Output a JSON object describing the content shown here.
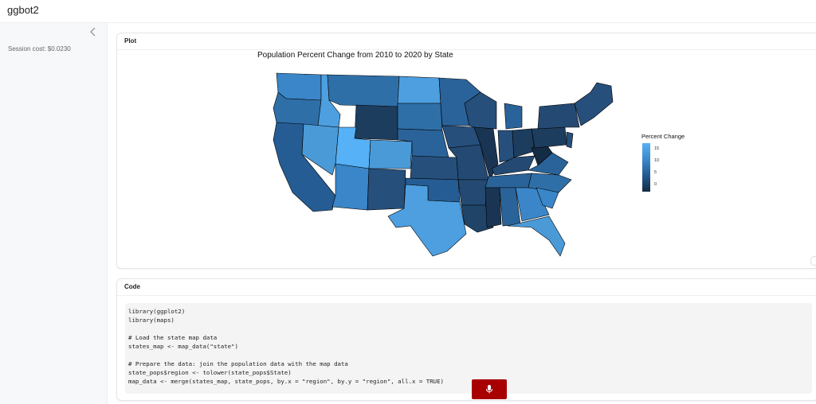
{
  "app": {
    "title": "ggbot2"
  },
  "sidebar": {
    "session_cost": "Session cost: $0.0230"
  },
  "plot_card": {
    "title": "Plot",
    "plot_title": "Population Percent Change from 2010 to 2020 by State",
    "legend": {
      "title": "Percent Change",
      "ticks": [
        "15",
        "10",
        "5",
        "0"
      ]
    }
  },
  "code_card": {
    "title": "Code",
    "lines": [
      "library(ggplot2)",
      "library(maps)",
      "",
      "# Load the state map data",
      "states_map <- map_data(\"state\")",
      "",
      "# Prepare the data: join the population data with the map data",
      "state_pops$region <- tolower(state_pops$State)",
      "map_data <- merge(states_map, state_pops, by.x = \"region\", by.y = \"region\", all.x = TRUE)"
    ]
  },
  "icons": {
    "collapse": "chevron-left-icon",
    "mic": "microphone-icon"
  },
  "colors": {
    "accent_button": "#a80000",
    "low": "#132b43",
    "high": "#56b1f7"
  }
}
